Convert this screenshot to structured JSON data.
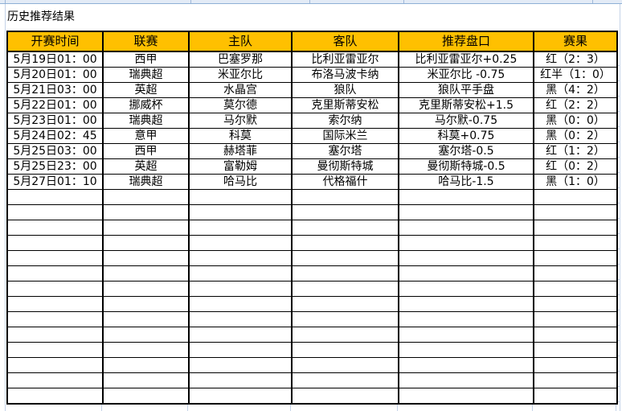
{
  "title": "历史推荐结果",
  "table": {
    "headers": [
      "开赛时间",
      "联赛",
      "主队",
      "客队",
      "推荐盘口",
      "赛果"
    ],
    "rows": [
      {
        "time": "5月19日01：00",
        "league": "西甲",
        "home": "巴塞罗那",
        "away": "比利亚雷亚尔",
        "handicap": "比利亚雷亚尔+0.25",
        "result": "红（2：3）",
        "result_color": "red"
      },
      {
        "time": "5月20日01：00",
        "league": "瑞典超",
        "home": "米亚尔比",
        "away": "布洛马波卡纳",
        "handicap": "米亚尔比 -0.75",
        "result": "红半（1：0）",
        "result_color": "red"
      },
      {
        "time": "5月21日03：00",
        "league": "英超",
        "home": "水晶宫",
        "away": "狼队",
        "handicap": "狼队平手盘",
        "result": "黑（4：2）",
        "result_color": "black"
      },
      {
        "time": "5月22日01：00",
        "league": "挪威杯",
        "home": "莫尔德",
        "away": "克里斯蒂安松",
        "handicap": "克里斯蒂安松+1.5",
        "result": "红（2：2）",
        "result_color": "red"
      },
      {
        "time": "5月23日01：00",
        "league": "瑞典超",
        "home": "马尔默",
        "away": "索尔纳",
        "handicap": "马尔默-0.75",
        "result": "黑（0：0）",
        "result_color": "black"
      },
      {
        "time": "5月24日02：45",
        "league": "意甲",
        "home": "科莫",
        "away": "国际米兰",
        "handicap": "科莫+0.75",
        "result": "黑（0：2）",
        "result_color": "black"
      },
      {
        "time": "5月25日03：00",
        "league": "西甲",
        "home": "赫塔菲",
        "away": "塞尔塔",
        "handicap": "塞尔塔-0.5",
        "result": "红（1：2）",
        "result_color": "red"
      },
      {
        "time": "5月25日23：00",
        "league": "英超",
        "home": "富勒姆",
        "away": "曼彻斯特城",
        "handicap": "曼彻斯特城-0.5",
        "result": "红（0：2）",
        "result_color": "red"
      },
      {
        "time": "5月27日01：10",
        "league": "瑞典超",
        "home": "哈马比",
        "away": "代格福什",
        "handicap": "哈马比-1.5",
        "result": "黑（1：0）",
        "result_color": "navy"
      }
    ],
    "empty_row_count": 14
  },
  "colors": {
    "header_bg": "#FFC000",
    "result_red": "#FF0000",
    "result_black": "#000000",
    "result_navy": "#1F3864",
    "gridline_blue": "#C5D3E8"
  }
}
